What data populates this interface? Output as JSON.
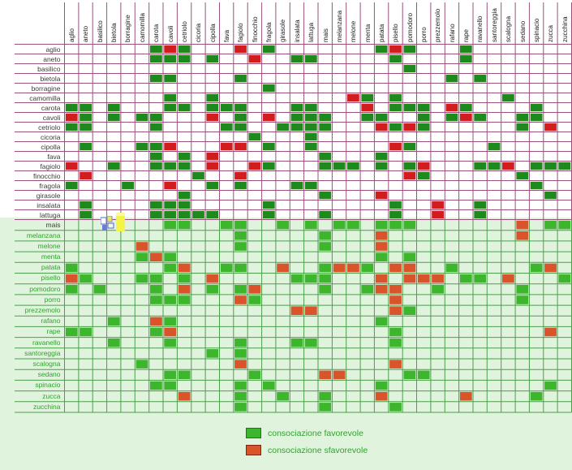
{
  "legend": {
    "favorevole_label": "consociazione favorevole",
    "sfavorevole_label": "consociazione sfavorevole"
  },
  "colors": {
    "grid_top": "#99517b",
    "grid_bottom": "#4d9e4d",
    "cell_fav_top": "#1e8a1e",
    "cell_unfav_top": "#d11d1d",
    "cell_fav_bottom": "#3db52c",
    "cell_unfav_bottom": "#d9532b",
    "bg_bottom": "#e0f3dc",
    "label_top": "#3c3c3c",
    "label_bottom": "#2fa32f",
    "header_text": "#1d1d1d",
    "legend_text": "#2fa32f",
    "legend_fav_border": "#1c741c",
    "legend_unfav_border": "#7e2410"
  },
  "chart_data": {
    "type": "heatmap",
    "title": "",
    "legend_position": "bottom",
    "plants": [
      "aglio",
      "aneto",
      "basilico",
      "bietola",
      "borragine",
      "camomilla",
      "carota",
      "cavoli",
      "cetriolo",
      "cicoria",
      "cipolla",
      "fava",
      "fagiolo",
      "finocchio",
      "fragola",
      "girasole",
      "insalata",
      "lattuga",
      "mais",
      "melanzana",
      "melone",
      "menta",
      "patata",
      "pisello",
      "pomodoro",
      "porro",
      "prezzemolo",
      "rafano",
      "rape",
      "ravanello",
      "santoreggia",
      "scalogna",
      "sedano",
      "spinacio",
      "zucca",
      "zucchina"
    ],
    "relations": {
      "aglio": {
        "favorevole": [
          "carota",
          "cetriolo",
          "fragola",
          "patata",
          "pomodoro",
          "rape"
        ],
        "sfavorevole": [
          "cavoli",
          "fagiolo",
          "pisello"
        ]
      },
      "aneto": {
        "favorevole": [
          "carota",
          "cavoli",
          "cetriolo",
          "cipolla",
          "insalata",
          "lattuga",
          "pisello",
          "rape"
        ],
        "sfavorevole": [
          "finocchio"
        ]
      },
      "basilico": {
        "favorevole": [
          "pomodoro"
        ],
        "sfavorevole": []
      },
      "bietola": {
        "favorevole": [
          "carota",
          "cavoli",
          "fagiolo",
          "rafano",
          "ravanello"
        ],
        "sfavorevole": []
      },
      "borragine": {
        "favorevole": [
          "fragola"
        ],
        "sfavorevole": []
      },
      "camomilla": {
        "favorevole": [
          "cavoli",
          "cipolla",
          "menta",
          "pisello",
          "scalogna"
        ],
        "sfavorevole": [
          "melone"
        ]
      },
      "carota": {
        "favorevole": [
          "aglio",
          "aneto",
          "bietola",
          "cavoli",
          "cetriolo",
          "cipolla",
          "fava",
          "fagiolo",
          "insalata",
          "lattuga",
          "pisello",
          "pomodoro",
          "porro",
          "rape",
          "spinacio"
        ],
        "sfavorevole": [
          "menta",
          "rafano"
        ]
      },
      "cavoli": {
        "favorevole": [
          "aneto",
          "bietola",
          "camomilla",
          "carota",
          "fagiolo",
          "insalata",
          "lattuga",
          "mais",
          "menta",
          "patata",
          "porro",
          "rafano",
          "ravanello",
          "sedano",
          "spinacio"
        ],
        "sfavorevole": [
          "aglio",
          "cipolla",
          "fragola",
          "rape"
        ]
      },
      "cetriolo": {
        "favorevole": [
          "aglio",
          "aneto",
          "carota",
          "fava",
          "fagiolo",
          "girasole",
          "insalata",
          "lattuga",
          "mais",
          "pisello",
          "porro",
          "sedano"
        ],
        "sfavorevole": [
          "patata",
          "pomodoro",
          "zucca"
        ]
      },
      "cicoria": {
        "favorevole": [
          "finocchio",
          "lattuga"
        ],
        "sfavorevole": []
      },
      "cipolla": {
        "favorevole": [
          "aneto",
          "camomilla",
          "carota",
          "fragola",
          "lattuga",
          "pomodoro",
          "santoreggia"
        ],
        "sfavorevole": [
          "cavoli",
          "fava",
          "fagiolo",
          "pisello"
        ]
      },
      "fava": {
        "favorevole": [
          "carota",
          "cetriolo",
          "mais",
          "patata"
        ],
        "sfavorevole": [
          "cipolla"
        ]
      },
      "fagiolo": {
        "favorevole": [
          "bietola",
          "carota",
          "cavoli",
          "cetriolo",
          "fragola",
          "mais",
          "melanzana",
          "melone",
          "patata",
          "pomodoro",
          "ravanello",
          "santoreggia",
          "spinacio",
          "zucca",
          "zucchina"
        ],
        "sfavorevole": [
          "aglio",
          "cipolla",
          "finocchio",
          "porro",
          "scalogna"
        ]
      },
      "finocchio": {
        "favorevole": [
          "cicoria",
          "porro",
          "sedano"
        ],
        "sfavorevole": [
          "aneto",
          "fagiolo",
          "pomodoro"
        ]
      },
      "fragola": {
        "favorevole": [
          "aglio",
          "borragine",
          "cipolla",
          "fagiolo",
          "insalata",
          "lattuga",
          "spinacio"
        ],
        "sfavorevole": [
          "cavoli"
        ]
      },
      "girasole": {
        "favorevole": [
          "cetriolo",
          "mais",
          "zucca"
        ],
        "sfavorevole": [
          "patata"
        ]
      },
      "insalata": {
        "favorevole": [
          "aneto",
          "carota",
          "cavoli",
          "cetriolo",
          "fragola",
          "pisello",
          "ravanello"
        ],
        "sfavorevole": [
          "prezzemolo"
        ]
      },
      "lattuga": {
        "favorevole": [
          "aneto",
          "carota",
          "cavoli",
          "cetriolo",
          "cicoria",
          "cipolla",
          "fragola",
          "mais",
          "pisello",
          "ravanello"
        ],
        "sfavorevole": [
          "prezzemolo"
        ]
      },
      "mais": {
        "favorevole": [
          "cavoli",
          "cetriolo",
          "fava",
          "fagiolo",
          "girasole",
          "lattuga",
          "melanzana",
          "melone",
          "patata",
          "pisello",
          "pomodoro",
          "zucca",
          "zucchina"
        ],
        "sfavorevole": [
          "sedano"
        ]
      },
      "melanzana": {
        "favorevole": [
          "fagiolo",
          "mais"
        ],
        "sfavorevole": [
          "patata",
          "sedano"
        ]
      },
      "melone": {
        "favorevole": [
          "fagiolo",
          "mais"
        ],
        "sfavorevole": [
          "camomilla",
          "patata"
        ]
      },
      "menta": {
        "favorevole": [
          "camomilla",
          "cavoli",
          "patata",
          "pomodoro"
        ],
        "sfavorevole": [
          "carota"
        ]
      },
      "patata": {
        "favorevole": [
          "aglio",
          "cavoli",
          "fava",
          "fagiolo",
          "mais",
          "menta",
          "rafano",
          "spinacio"
        ],
        "sfavorevole": [
          "cetriolo",
          "girasole",
          "melanzana",
          "melone",
          "pisello",
          "pomodoro",
          "zucca"
        ]
      },
      "pisello": {
        "favorevole": [
          "aneto",
          "camomilla",
          "carota",
          "cetriolo",
          "insalata",
          "lattuga",
          "mais",
          "rape",
          "ravanello",
          "zucchina"
        ],
        "sfavorevole": [
          "aglio",
          "cipolla",
          "patata",
          "pomodoro",
          "porro",
          "prezzemolo",
          "scalogna"
        ]
      },
      "pomodoro": {
        "favorevole": [
          "aglio",
          "basilico",
          "carota",
          "cipolla",
          "fagiolo",
          "mais",
          "menta",
          "prezzemolo",
          "sedano"
        ],
        "sfavorevole": [
          "cetriolo",
          "finocchio",
          "patata",
          "pisello"
        ]
      },
      "porro": {
        "favorevole": [
          "carota",
          "cavoli",
          "cetriolo",
          "finocchio",
          "sedano"
        ],
        "sfavorevole": [
          "fagiolo",
          "pisello"
        ]
      },
      "prezzemolo": {
        "favorevole": [
          "pomodoro"
        ],
        "sfavorevole": [
          "insalata",
          "lattuga",
          "pisello"
        ]
      },
      "rafano": {
        "favorevole": [
          "bietola",
          "cavoli",
          "patata"
        ],
        "sfavorevole": [
          "carota"
        ]
      },
      "rape": {
        "favorevole": [
          "aglio",
          "aneto",
          "carota",
          "pisello"
        ],
        "sfavorevole": [
          "cavoli",
          "zucca"
        ]
      },
      "ravanello": {
        "favorevole": [
          "bietola",
          "cavoli",
          "fagiolo",
          "insalata",
          "lattuga",
          "pisello"
        ],
        "sfavorevole": []
      },
      "santoreggia": {
        "favorevole": [
          "cipolla",
          "fagiolo"
        ],
        "sfavorevole": []
      },
      "scalogna": {
        "favorevole": [
          "camomilla"
        ],
        "sfavorevole": [
          "fagiolo",
          "pisello"
        ]
      },
      "sedano": {
        "favorevole": [
          "cavoli",
          "cetriolo",
          "finocchio",
          "pomodoro",
          "porro"
        ],
        "sfavorevole": [
          "mais",
          "melanzana"
        ]
      },
      "spinacio": {
        "favorevole": [
          "carota",
          "cavoli",
          "fagiolo",
          "fragola",
          "patata",
          "zucca"
        ],
        "sfavorevole": []
      },
      "zucca": {
        "favorevole": [
          "fagiolo",
          "girasole",
          "mais",
          "spinacio"
        ],
        "sfavorevole": [
          "cetriolo",
          "patata",
          "rape"
        ]
      },
      "zucchina": {
        "favorevole": [
          "fagiolo",
          "mais",
          "pisello"
        ],
        "sfavorevole": []
      }
    }
  }
}
